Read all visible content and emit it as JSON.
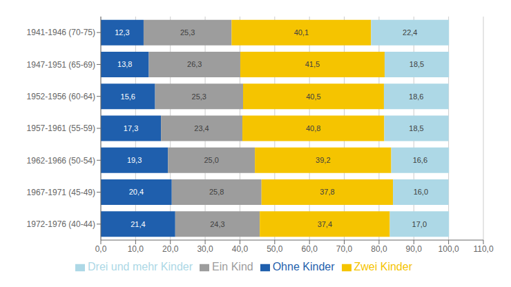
{
  "chart_data": {
    "type": "bar",
    "orientation": "horizontal",
    "stacked": true,
    "data_labels": true,
    "grid": true,
    "legend": "bottom",
    "categories": [
      "1941-1946 (70-75)",
      "1947-1951 (65-69)",
      "1952-1956 (60-64)",
      "1957-1961 (55-59)",
      "1962-1966 (50-54)",
      "1967-1971 (45-49)",
      "1972-1976 (40-44)"
    ],
    "series": [
      {
        "name": "Ohne Kinder",
        "color": "#1F5FAD",
        "values": [
          12.3,
          13.8,
          15.6,
          17.3,
          19.3,
          20.4,
          21.4
        ],
        "value_labels": [
          "12,3",
          "13,8",
          "15,6",
          "17,3",
          "19,3",
          "20,4",
          "21,4"
        ]
      },
      {
        "name": "Ein Kind",
        "color": "#9D9D9D",
        "values": [
          25.3,
          26.3,
          25.3,
          23.4,
          25.0,
          25.8,
          24.3
        ],
        "value_labels": [
          "25,3",
          "26,3",
          "25,3",
          "23,4",
          "25,0",
          "25,8",
          "24,3"
        ]
      },
      {
        "name": "Zwei Kinder",
        "color": "#F5C400",
        "values": [
          40.1,
          41.5,
          40.5,
          40.8,
          39.2,
          37.8,
          37.4
        ],
        "value_labels": [
          "40,1",
          "41,5",
          "40,5",
          "40,8",
          "39,2",
          "37,8",
          "37,4"
        ]
      },
      {
        "name": "Drei und mehr Kinder",
        "color": "#ADD8E6",
        "values": [
          22.4,
          18.5,
          18.6,
          18.5,
          16.6,
          16.0,
          17.0
        ],
        "value_labels": [
          "22,4",
          "18,5",
          "18,6",
          "18,5",
          "16,6",
          "16,0",
          "17,0"
        ]
      }
    ],
    "xlim": [
      0,
      110
    ],
    "xticks": [
      {
        "value": 0,
        "label": "0,0"
      },
      {
        "value": 10,
        "label": "10,0"
      },
      {
        "value": 20,
        "label": "20,0"
      },
      {
        "value": 30,
        "label": "30,0"
      },
      {
        "value": 40,
        "label": "40,0"
      },
      {
        "value": 50,
        "label": "50,0"
      },
      {
        "value": 60,
        "label": "60,0"
      },
      {
        "value": 70,
        "label": "70,0"
      },
      {
        "value": 80,
        "label": "80,0"
      },
      {
        "value": 90,
        "label": "90,0"
      },
      {
        "value": 100,
        "label": "100,0"
      },
      {
        "value": 110,
        "label": "110,0"
      }
    ]
  }
}
